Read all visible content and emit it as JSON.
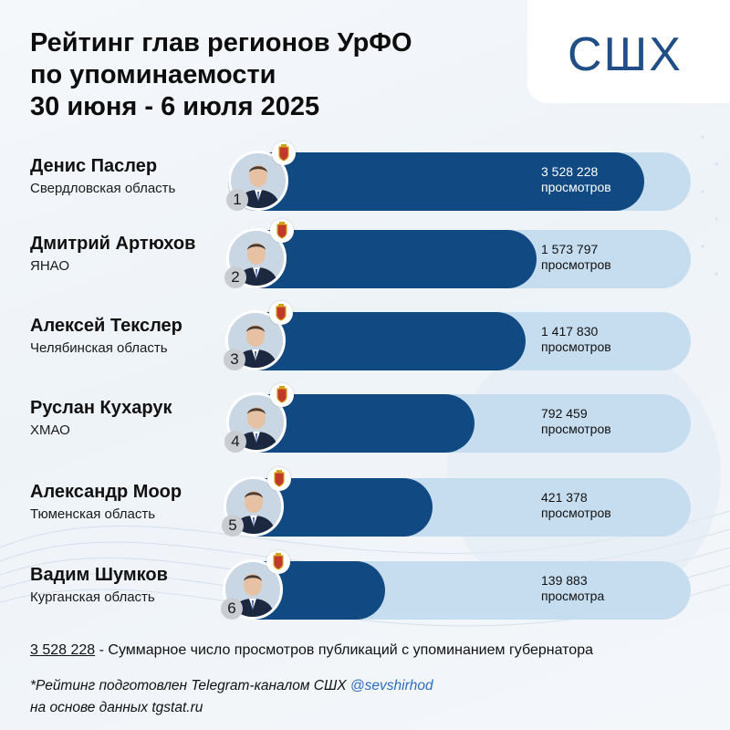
{
  "title_lines": [
    "Рейтинг глав регионов УрФО",
    "по упоминаемости",
    "30 июня - 6 июля 2025"
  ],
  "logo_text": "СШХ",
  "colors": {
    "bar_fill": "#114a82",
    "bar_track": "#c6ddef",
    "logo": "#1f4f86"
  },
  "chart_data": {
    "type": "bar",
    "categories": [
      "Денис Паслер",
      "Дмитрий Артюхов",
      "Алексей Текслер",
      "Руслан Кухарук",
      "Александр Моор",
      "Вадим Шумков"
    ],
    "values": [
      3528228,
      1573797,
      1417830,
      792459,
      421378,
      139883
    ]
  },
  "rows": [
    {
      "rank": "1",
      "name": "Денис Паслер",
      "region": "Свердловская область",
      "value_text": "3 528 228",
      "unit": "просмотров"
    },
    {
      "rank": "2",
      "name": "Дмитрий Артюхов",
      "region": "ЯНАО",
      "value_text": "1 573 797",
      "unit": "просмотров"
    },
    {
      "rank": "3",
      "name": "Алексей Текслер",
      "region": "Челябинская область",
      "value_text": "1 417 830",
      "unit": "просмотров"
    },
    {
      "rank": "4",
      "name": "Руслан Кухарук",
      "region": "ХМАО",
      "value_text": "792 459",
      "unit": "просмотров"
    },
    {
      "rank": "5",
      "name": "Александр Моор",
      "region": "Тюменская область",
      "value_text": "421 378",
      "unit": "просмотров"
    },
    {
      "rank": "6",
      "name": "Вадим Шумков",
      "region": "Курганская область",
      "value_text": "139 883",
      "unit": "просмотра"
    }
  ],
  "footer": {
    "total": "3 528 228",
    "total_caption": " - Суммарное число просмотров публикаций с упоминанием губернатора",
    "note_prefix": "*Рейтинг подготовлен Telegram-каналом СШХ ",
    "handle": "@sevshirhod",
    "note_line2": "на основе данных tgstat.ru"
  }
}
